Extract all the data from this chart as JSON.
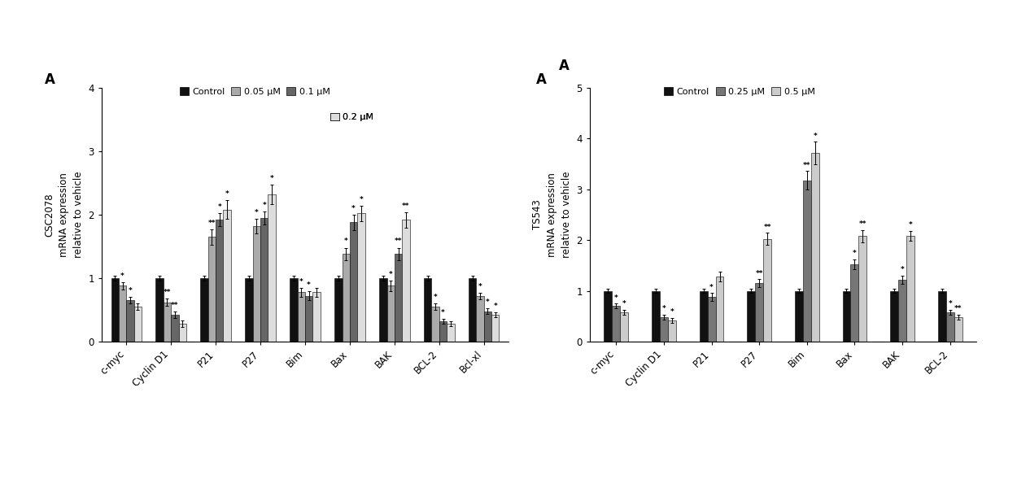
{
  "chart1": {
    "title": "A",
    "ylabel_line1": "CSC2078",
    "ylabel_line2": "mRNA expression\nrelative to vehicle",
    "categories": [
      "c-myc",
      "Cyclin D1",
      "P21",
      "P27",
      "Bim",
      "Bax",
      "BAK",
      "BCL-2",
      "Bcl-xl"
    ],
    "legend_labels": [
      "Control",
      "0.05 μM",
      "0.1 μM",
      "0.2 μM"
    ],
    "colors": [
      "#111111",
      "#aaaaaa",
      "#666666",
      "#dddddd"
    ],
    "bar_data": [
      [
        1.0,
        1.0,
        1.0,
        1.0,
        1.0,
        1.0,
        1.0,
        1.0,
        1.0
      ],
      [
        0.88,
        0.62,
        1.65,
        1.82,
        0.78,
        1.38,
        0.88,
        0.55,
        0.72
      ],
      [
        0.65,
        0.42,
        1.92,
        1.95,
        0.72,
        1.88,
        1.38,
        0.32,
        0.48
      ],
      [
        0.55,
        0.28,
        2.08,
        2.32,
        0.78,
        2.02,
        1.92,
        0.28,
        0.42
      ]
    ],
    "error_data": [
      [
        0.04,
        0.04,
        0.04,
        0.04,
        0.04,
        0.04,
        0.04,
        0.04,
        0.04
      ],
      [
        0.06,
        0.06,
        0.12,
        0.12,
        0.07,
        0.1,
        0.08,
        0.05,
        0.05
      ],
      [
        0.05,
        0.05,
        0.1,
        0.1,
        0.07,
        0.12,
        0.1,
        0.04,
        0.04
      ],
      [
        0.05,
        0.05,
        0.15,
        0.15,
        0.07,
        0.12,
        0.12,
        0.04,
        0.04
      ]
    ],
    "ylim": [
      0,
      4
    ],
    "yticks": [
      0,
      1,
      2,
      3,
      4
    ],
    "stars": [
      [
        "",
        "",
        "",
        "",
        "",
        "",
        "",
        "",
        ""
      ],
      [
        "*",
        "**",
        "**",
        "*",
        "*",
        "*",
        "*",
        "*",
        "*"
      ],
      [
        "*",
        "**",
        "*",
        "*",
        "*",
        "*",
        "**",
        "*",
        "*"
      ],
      [
        "",
        "",
        "*",
        "*",
        "",
        "*",
        "**",
        "",
        "*"
      ]
    ]
  },
  "chart2": {
    "title": "A",
    "ylabel_line1": "TS543",
    "ylabel_line2": "mRNA expression\nrelative to vehicle",
    "categories": [
      "c-myc",
      "Cyclin D1",
      "P21",
      "P27",
      "Bim",
      "Bax",
      "BAK",
      "BCL-2"
    ],
    "legend_labels": [
      "Control",
      "0.25 μM",
      "0.5 μM"
    ],
    "colors": [
      "#111111",
      "#777777",
      "#cccccc"
    ],
    "bar_data": [
      [
        1.0,
        1.0,
        1.0,
        1.0,
        1.0,
        1.0,
        1.0,
        1.0
      ],
      [
        0.7,
        0.48,
        0.88,
        1.15,
        3.18,
        1.52,
        1.22,
        0.58
      ],
      [
        0.58,
        0.42,
        1.28,
        2.02,
        3.72,
        2.08,
        2.08,
        0.48
      ]
    ],
    "error_data": [
      [
        0.04,
        0.04,
        0.04,
        0.04,
        0.04,
        0.04,
        0.04,
        0.04
      ],
      [
        0.05,
        0.05,
        0.08,
        0.08,
        0.18,
        0.1,
        0.08,
        0.05
      ],
      [
        0.05,
        0.05,
        0.1,
        0.12,
        0.22,
        0.12,
        0.1,
        0.05
      ]
    ],
    "ylim": [
      0,
      5
    ],
    "yticks": [
      0,
      1,
      2,
      3,
      4,
      5
    ],
    "stars": [
      [
        "",
        "",
        "",
        "",
        "",
        "",
        "",
        ""
      ],
      [
        "*",
        "*",
        "*",
        "**",
        "**",
        "*",
        "*",
        "*"
      ],
      [
        "*",
        "*",
        "",
        "**",
        "*",
        "**",
        "*",
        "**"
      ]
    ]
  },
  "background_color": "#ffffff",
  "bar_width": 0.17,
  "fontsize": 8.5,
  "title_fontsize": 12,
  "star_fontsize": 6.5
}
